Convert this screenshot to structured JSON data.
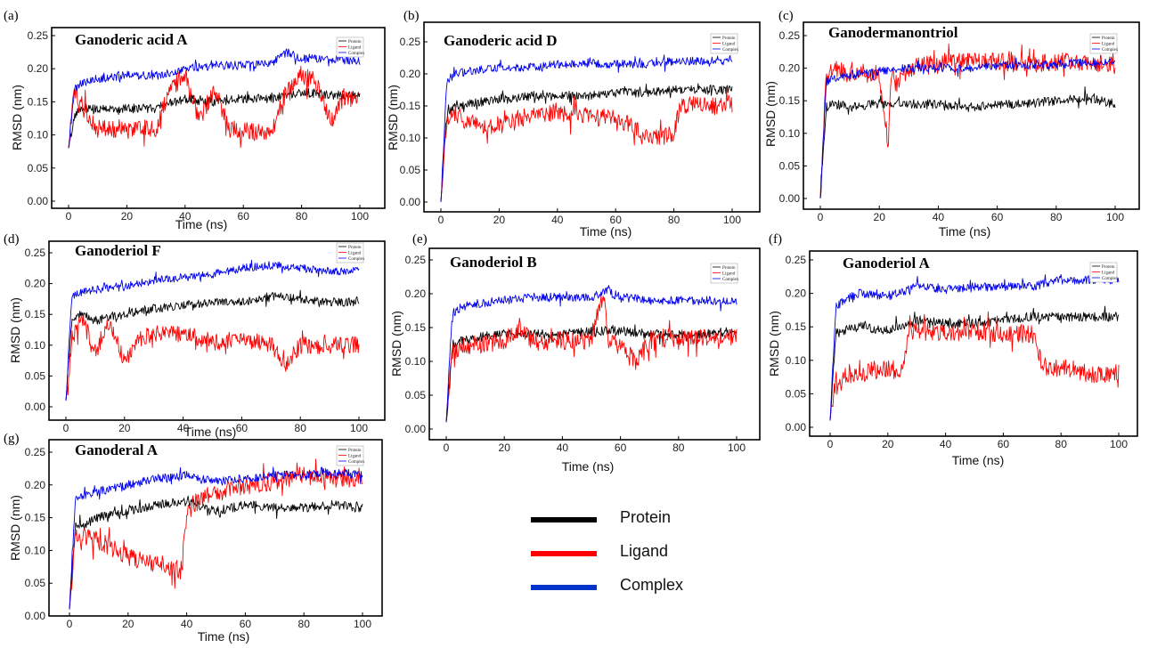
{
  "figure": {
    "legend": [
      {
        "label": "Protein",
        "color": "#000000"
      },
      {
        "label": "Ligand",
        "color": "#ff0000"
      },
      {
        "label": "Complex",
        "color": "#0033cc"
      }
    ]
  },
  "chart_data": [
    {
      "panel": "(a)",
      "title": "Ganoderic  acid A",
      "type": "line",
      "xlabel": "Time (ns)",
      "ylabel": "RMSD (nm)",
      "xlim": [
        0,
        100
      ],
      "ylim": [
        0,
        0.25
      ],
      "xticks": [
        "0",
        "20",
        "40",
        "60",
        "80",
        "100"
      ],
      "yticks": [
        "0.00",
        "0.05",
        "0.10",
        "0.15",
        "0.20",
        "0.25"
      ],
      "legend_labels": [
        "Protein",
        "Ligand",
        "Complex"
      ],
      "series": [
        {
          "name": "Protein",
          "color": "#000000",
          "x": [
            0,
            2,
            5,
            10,
            20,
            30,
            40,
            50,
            60,
            70,
            80,
            90,
            100
          ],
          "values": [
            0.08,
            0.13,
            0.14,
            0.14,
            0.14,
            0.14,
            0.155,
            0.15,
            0.155,
            0.155,
            0.165,
            0.16,
            0.16
          ]
        },
        {
          "name": "Ligand",
          "color": "#ff0000",
          "x": [
            0,
            2,
            5,
            10,
            20,
            30,
            35,
            40,
            45,
            50,
            55,
            60,
            70,
            75,
            80,
            85,
            90,
            95,
            100
          ],
          "values": [
            0.08,
            0.17,
            0.14,
            0.11,
            0.105,
            0.11,
            0.17,
            0.19,
            0.12,
            0.17,
            0.11,
            0.105,
            0.105,
            0.17,
            0.19,
            0.18,
            0.12,
            0.16,
            0.15
          ]
        },
        {
          "name": "Complex",
          "color": "#0000ee",
          "x": [
            0,
            2,
            5,
            10,
            20,
            30,
            40,
            50,
            60,
            70,
            75,
            80,
            90,
            100
          ],
          "values": [
            0.08,
            0.17,
            0.18,
            0.185,
            0.19,
            0.19,
            0.2,
            0.205,
            0.205,
            0.21,
            0.225,
            0.215,
            0.215,
            0.21
          ]
        }
      ]
    },
    {
      "panel": "(b)",
      "title": "Ganoderic  acid D",
      "type": "line",
      "xlabel": "Time (ns)",
      "ylabel": "RMSD (nm)",
      "xlim": [
        0,
        100
      ],
      "ylim": [
        0,
        0.25
      ],
      "xticks": [
        "0",
        "20",
        "40",
        "60",
        "80",
        "100"
      ],
      "yticks": [
        "0.00",
        "0.05",
        "0.10",
        "0.15",
        "0.20",
        "0.25"
      ],
      "legend_labels": [
        "Protein",
        "Ligand",
        "Complex"
      ],
      "series": [
        {
          "name": "Protein",
          "color": "#000000",
          "x": [
            0,
            2,
            5,
            10,
            20,
            30,
            40,
            50,
            60,
            70,
            80,
            90,
            100
          ],
          "values": [
            0.0,
            0.14,
            0.15,
            0.155,
            0.16,
            0.165,
            0.165,
            0.165,
            0.17,
            0.17,
            0.175,
            0.175,
            0.175
          ]
        },
        {
          "name": "Ligand",
          "color": "#ff0000",
          "x": [
            0,
            2,
            5,
            10,
            20,
            30,
            40,
            50,
            60,
            65,
            70,
            80,
            82,
            90,
            100
          ],
          "values": [
            0.0,
            0.13,
            0.14,
            0.12,
            0.12,
            0.135,
            0.14,
            0.135,
            0.13,
            0.12,
            0.1,
            0.105,
            0.15,
            0.15,
            0.15
          ]
        },
        {
          "name": "Complex",
          "color": "#0000ee",
          "x": [
            0,
            2,
            5,
            10,
            20,
            30,
            40,
            50,
            60,
            70,
            80,
            90,
            100
          ],
          "values": [
            0.0,
            0.19,
            0.2,
            0.205,
            0.21,
            0.21,
            0.215,
            0.215,
            0.215,
            0.215,
            0.22,
            0.22,
            0.22
          ]
        }
      ]
    },
    {
      "panel": "(c)",
      "title": "Ganodermanontriol",
      "type": "line",
      "xlabel": "Time (ns)",
      "ylabel": "RMSD (nm)",
      "xlim": [
        0,
        100
      ],
      "ylim": [
        0,
        0.25
      ],
      "xticks": [
        "0",
        "20",
        "40",
        "60",
        "80",
        "100"
      ],
      "yticks": [
        "0.00",
        "0.05",
        "0.10",
        "0.15",
        "0.20",
        "0.25"
      ],
      "legend_labels": [
        "Protein",
        "Ligand",
        "Complex"
      ],
      "series": [
        {
          "name": "Protein",
          "color": "#000000",
          "x": [
            0,
            2,
            5,
            10,
            20,
            30,
            40,
            50,
            60,
            70,
            80,
            90,
            100
          ],
          "values": [
            0.0,
            0.14,
            0.145,
            0.14,
            0.145,
            0.145,
            0.145,
            0.14,
            0.145,
            0.145,
            0.15,
            0.155,
            0.145
          ]
        },
        {
          "name": "Ligand",
          "color": "#ff0000",
          "x": [
            0,
            2,
            5,
            10,
            20,
            23,
            24,
            26,
            30,
            35,
            40,
            50,
            60,
            70,
            80,
            90,
            100
          ],
          "values": [
            0.0,
            0.19,
            0.2,
            0.19,
            0.19,
            0.08,
            0.19,
            0.175,
            0.2,
            0.21,
            0.21,
            0.21,
            0.21,
            0.205,
            0.21,
            0.21,
            0.205
          ]
        },
        {
          "name": "Complex",
          "color": "#0000ee",
          "x": [
            0,
            2,
            5,
            10,
            20,
            30,
            40,
            50,
            60,
            70,
            80,
            90,
            100
          ],
          "values": [
            0.0,
            0.18,
            0.185,
            0.19,
            0.195,
            0.2,
            0.2,
            0.2,
            0.205,
            0.205,
            0.205,
            0.21,
            0.21
          ]
        }
      ]
    },
    {
      "panel": "(d)",
      "title": "Ganoderiol  F",
      "type": "line",
      "xlabel": "Time (ns)",
      "ylabel": "RMSD (nm)",
      "xlim": [
        0,
        100
      ],
      "ylim": [
        0,
        0.25
      ],
      "xticks": [
        "0",
        "20",
        "40",
        "60",
        "80",
        "100"
      ],
      "yticks": [
        "0.00",
        "0.05",
        "0.10",
        "0.15",
        "0.20",
        "0.25"
      ],
      "legend_labels": [
        "Protein",
        "Ligand",
        "Complex"
      ],
      "series": [
        {
          "name": "Protein",
          "color": "#000000",
          "x": [
            0,
            2,
            5,
            10,
            20,
            30,
            40,
            50,
            60,
            70,
            80,
            90,
            100
          ],
          "values": [
            0.01,
            0.14,
            0.15,
            0.14,
            0.15,
            0.16,
            0.165,
            0.17,
            0.17,
            0.18,
            0.175,
            0.17,
            0.17
          ]
        },
        {
          "name": "Ligand",
          "color": "#ff0000",
          "x": [
            0,
            2,
            5,
            10,
            15,
            20,
            25,
            30,
            40,
            50,
            60,
            70,
            75,
            80,
            90,
            100
          ],
          "values": [
            0.01,
            0.1,
            0.15,
            0.09,
            0.14,
            0.07,
            0.11,
            0.12,
            0.12,
            0.105,
            0.11,
            0.1,
            0.07,
            0.1,
            0.1,
            0.1
          ]
        },
        {
          "name": "Complex",
          "color": "#0000ee",
          "x": [
            0,
            2,
            5,
            10,
            20,
            30,
            40,
            50,
            60,
            70,
            80,
            90,
            100
          ],
          "values": [
            0.01,
            0.18,
            0.185,
            0.19,
            0.195,
            0.205,
            0.21,
            0.215,
            0.225,
            0.23,
            0.225,
            0.22,
            0.22
          ]
        }
      ]
    },
    {
      "panel": "(e)",
      "title": "Ganoderiol  B",
      "type": "line",
      "xlabel": "Time (ns)",
      "ylabel": "RMSD (nm)",
      "xlim": [
        0,
        100
      ],
      "ylim": [
        0,
        0.25
      ],
      "xticks": [
        "0",
        "20",
        "40",
        "60",
        "80",
        "100"
      ],
      "yticks": [
        "0.00",
        "0.05",
        "0.10",
        "0.15",
        "0.20",
        "0.25"
      ],
      "legend_labels": [
        "Protein",
        "Ligand",
        "Complex"
      ],
      "series": [
        {
          "name": "Protein",
          "color": "#000000",
          "x": [
            0,
            2,
            5,
            10,
            20,
            30,
            40,
            50,
            60,
            70,
            80,
            90,
            100
          ],
          "values": [
            0.01,
            0.12,
            0.13,
            0.135,
            0.14,
            0.14,
            0.14,
            0.145,
            0.145,
            0.14,
            0.14,
            0.14,
            0.145
          ]
        },
        {
          "name": "Ligand",
          "color": "#ff0000",
          "x": [
            0,
            2,
            5,
            10,
            20,
            25,
            30,
            40,
            50,
            54,
            56,
            60,
            65,
            70,
            75,
            80,
            90,
            100
          ],
          "values": [
            0.01,
            0.11,
            0.12,
            0.125,
            0.13,
            0.15,
            0.13,
            0.13,
            0.13,
            0.2,
            0.13,
            0.12,
            0.1,
            0.13,
            0.135,
            0.13,
            0.135,
            0.14
          ]
        },
        {
          "name": "Complex",
          "color": "#0000ee",
          "x": [
            0,
            2,
            5,
            10,
            20,
            30,
            40,
            50,
            55,
            60,
            70,
            80,
            90,
            100
          ],
          "values": [
            0.01,
            0.17,
            0.18,
            0.185,
            0.19,
            0.195,
            0.195,
            0.195,
            0.205,
            0.195,
            0.19,
            0.19,
            0.19,
            0.19
          ]
        }
      ]
    },
    {
      "panel": "(f)",
      "title": "Ganoderiol  A",
      "type": "line",
      "xlabel": "Time (ns)",
      "ylabel": "RMSD (nm)",
      "xlim": [
        0,
        100
      ],
      "ylim": [
        0,
        0.25
      ],
      "xticks": [
        "0",
        "20",
        "40",
        "60",
        "80",
        "100"
      ],
      "yticks": [
        "0.00",
        "0.05",
        "0.10",
        "0.15",
        "0.20",
        "0.25"
      ],
      "legend_labels": [
        "Protein",
        "Ligand",
        "Complex"
      ],
      "series": [
        {
          "name": "Protein",
          "color": "#000000",
          "x": [
            0,
            2,
            5,
            10,
            20,
            30,
            40,
            50,
            60,
            70,
            80,
            90,
            100
          ],
          "values": [
            0.01,
            0.14,
            0.145,
            0.15,
            0.145,
            0.16,
            0.155,
            0.155,
            0.16,
            0.165,
            0.165,
            0.165,
            0.165
          ]
        },
        {
          "name": "Ligand",
          "color": "#ff0000",
          "x": [
            0,
            2,
            5,
            10,
            20,
            25,
            27,
            30,
            40,
            50,
            60,
            70,
            73,
            75,
            80,
            90,
            100
          ],
          "values": [
            0.01,
            0.07,
            0.08,
            0.08,
            0.09,
            0.08,
            0.14,
            0.145,
            0.14,
            0.145,
            0.14,
            0.14,
            0.1,
            0.09,
            0.09,
            0.08,
            0.08
          ]
        },
        {
          "name": "Complex",
          "color": "#0000ee",
          "x": [
            0,
            2,
            5,
            10,
            20,
            30,
            40,
            50,
            60,
            70,
            80,
            90,
            100
          ],
          "values": [
            0.01,
            0.18,
            0.19,
            0.2,
            0.195,
            0.21,
            0.205,
            0.21,
            0.21,
            0.21,
            0.22,
            0.22,
            0.22
          ]
        }
      ]
    },
    {
      "panel": "(g)",
      "title": "Ganoderal A",
      "type": "line",
      "xlabel": "Time (ns)",
      "ylabel": "RMSD (nm)",
      "xlim": [
        0,
        100
      ],
      "ylim": [
        0,
        0.25
      ],
      "xticks": [
        "0",
        "20",
        "40",
        "60",
        "80",
        "100"
      ],
      "yticks": [
        "0.00",
        "0.05",
        "0.10",
        "0.15",
        "0.20",
        "0.25"
      ],
      "legend_labels": [
        "Protein",
        "Ligand",
        "Complex"
      ],
      "series": [
        {
          "name": "Protein",
          "color": "#000000",
          "x": [
            0,
            2,
            5,
            10,
            20,
            30,
            40,
            50,
            60,
            70,
            80,
            90,
            100
          ],
          "values": [
            0.01,
            0.14,
            0.14,
            0.15,
            0.16,
            0.17,
            0.175,
            0.16,
            0.17,
            0.165,
            0.165,
            0.17,
            0.165
          ]
        },
        {
          "name": "Ligand",
          "color": "#ff0000",
          "x": [
            0,
            2,
            5,
            10,
            20,
            30,
            38,
            40,
            42,
            50,
            60,
            70,
            80,
            90,
            100
          ],
          "values": [
            0.01,
            0.12,
            0.12,
            0.115,
            0.09,
            0.08,
            0.07,
            0.15,
            0.17,
            0.19,
            0.2,
            0.205,
            0.215,
            0.21,
            0.21
          ]
        },
        {
          "name": "Complex",
          "color": "#0000ee",
          "x": [
            0,
            2,
            5,
            10,
            20,
            30,
            40,
            50,
            60,
            70,
            80,
            90,
            100
          ],
          "values": [
            0.01,
            0.18,
            0.185,
            0.19,
            0.2,
            0.21,
            0.215,
            0.205,
            0.21,
            0.215,
            0.215,
            0.22,
            0.215
          ]
        }
      ]
    }
  ]
}
